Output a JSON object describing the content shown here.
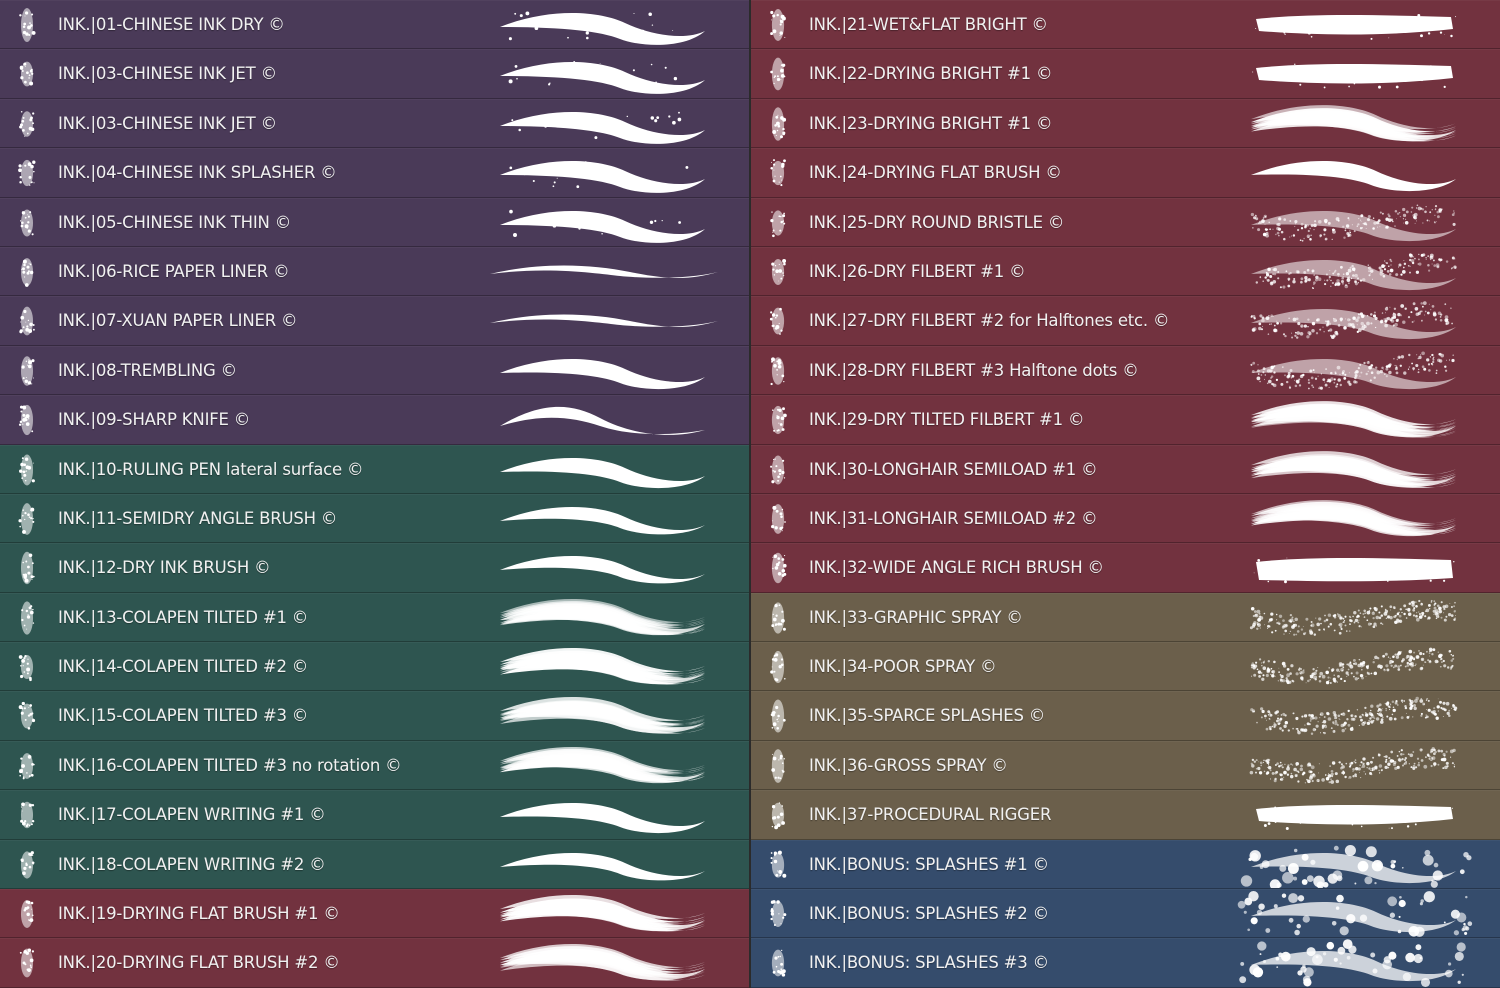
{
  "colors": {
    "purple": "#4a3a58",
    "green": "#2e5550",
    "wine": "#72323f",
    "olive": "#6b5f4b",
    "blue": "#354c6c",
    "stroke": "#ffffff"
  },
  "left_column": [
    {
      "label": "INK.|01-CHINESE INK DRY ©",
      "group": "purple",
      "style": "dry"
    },
    {
      "label": "INK.|03-CHINESE INK JET ©",
      "group": "purple",
      "style": "jet"
    },
    {
      "label": "INK.|03-CHINESE INK JET ©",
      "group": "purple",
      "style": "jet"
    },
    {
      "label": "INK.|04-CHINESE INK SPLASHER ©",
      "group": "purple",
      "style": "splash"
    },
    {
      "label": "INK.|05-CHINESE INK THIN ©",
      "group": "purple",
      "style": "wavy"
    },
    {
      "label": "INK.|06-RICE PAPER LINER ©",
      "group": "purple",
      "style": "liner"
    },
    {
      "label": "INK.|07-XUAN PAPER LINER ©",
      "group": "purple",
      "style": "liner"
    },
    {
      "label": "INK.|08-TREMBLING ©",
      "group": "purple",
      "style": "smooth"
    },
    {
      "label": "INK.|09-SHARP KNIFE ©",
      "group": "purple",
      "style": "knife"
    },
    {
      "label": "INK.|10-RULING PEN lateral surface ©",
      "group": "green",
      "style": "smooth"
    },
    {
      "label": "INK.|11-SEMIDRY ANGLE BRUSH ©",
      "group": "green",
      "style": "taper"
    },
    {
      "label": "INK.|12-DRY INK BRUSH ©",
      "group": "green",
      "style": "taper"
    },
    {
      "label": "INK.|13-COLAPEN TILTED #1 ©",
      "group": "green",
      "style": "bristle"
    },
    {
      "label": "INK.|14-COLAPEN TILTED #2 ©",
      "group": "green",
      "style": "bristle"
    },
    {
      "label": "INK.|15-COLAPEN TILTED #3 ©",
      "group": "green",
      "style": "bristle"
    },
    {
      "label": "INK.|16-COLAPEN TILTED #3 no rotation ©",
      "group": "green",
      "style": "bristle"
    },
    {
      "label": "INK.|17-COLAPEN WRITING #1 ©",
      "group": "green",
      "style": "smooth"
    },
    {
      "label": "INK.|18-COLAPEN WRITING #2 ©",
      "group": "green",
      "style": "taper"
    },
    {
      "label": "INK.|19-DRYING FLAT BRUSH #1 ©",
      "group": "wine",
      "style": "bristle"
    },
    {
      "label": "INK.|20-DRYING FLAT BRUSH #2 ©",
      "group": "wine",
      "style": "bristle"
    }
  ],
  "right_column": [
    {
      "label": "INK.|21-WET&FLAT BRIGHT ©",
      "group": "wine",
      "style": "flat"
    },
    {
      "label": "INK.|22-DRYING BRIGHT #1 ©",
      "group": "wine",
      "style": "flat"
    },
    {
      "label": "INK.|23-DRYING BRIGHT #1 ©",
      "group": "wine",
      "style": "streaks"
    },
    {
      "label": "INK.|24-DRYING FLAT BRUSH ©",
      "group": "wine",
      "style": "smooth"
    },
    {
      "label": "INK.|25-DRY ROUND BRISTLE ©",
      "group": "wine",
      "style": "dots"
    },
    {
      "label": "INK.|26-DRY FILBERT #1 ©",
      "group": "wine",
      "style": "dots"
    },
    {
      "label": "INK.|27-DRY FILBERT #2 for Halftones etc. ©",
      "group": "wine",
      "style": "dots"
    },
    {
      "label": "INK.|28-DRY FILBERT #3 Halftone dots ©",
      "group": "wine",
      "style": "dots"
    },
    {
      "label": "INK.|29-DRY TILTED FILBERT #1 ©",
      "group": "wine",
      "style": "streaks"
    },
    {
      "label": "INK.|30-LONGHAIR SEMILOAD #1 ©",
      "group": "wine",
      "style": "streaks"
    },
    {
      "label": "INK.|31-LONGHAIR SEMILOAD #2 ©",
      "group": "wine",
      "style": "streaks"
    },
    {
      "label": "INK.|32-WIDE ANGLE RICH BRUSH ©",
      "group": "wine",
      "style": "wide"
    },
    {
      "label": "INK.|33-GRAPHIC SPRAY ©",
      "group": "olive",
      "style": "spray"
    },
    {
      "label": "INK.|34-POOR SPRAY ©",
      "group": "olive",
      "style": "spray"
    },
    {
      "label": "INK.|35-SPARCE SPLASHES ©",
      "group": "olive",
      "style": "spray"
    },
    {
      "label": "INK.|36-GROSS SPRAY ©",
      "group": "olive",
      "style": "spray"
    },
    {
      "label": "INK.|37-PROCEDURAL RIGGER",
      "group": "olive",
      "style": "flat"
    },
    {
      "label": "INK.|BONUS: SPLASHES #1 ©",
      "group": "blue",
      "style": "splashes"
    },
    {
      "label": "INK.|BONUS: SPLASHES #2 ©",
      "group": "blue",
      "style": "splashes"
    },
    {
      "label": "INK.|BONUS: SPLASHES #3 ©",
      "group": "blue",
      "style": "splashes"
    }
  ]
}
